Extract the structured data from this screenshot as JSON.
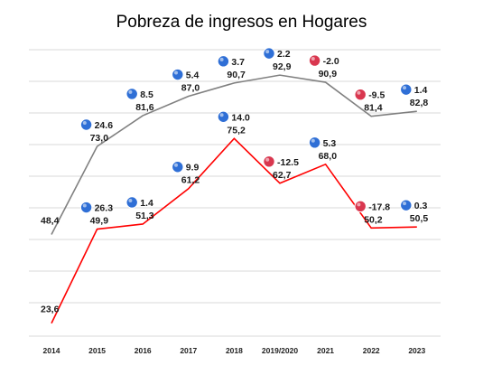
{
  "chart_data": {
    "type": "line",
    "title": "Pobreza de ingresos en Hogares",
    "categories": [
      "2014",
      "2015",
      "2016",
      "2017",
      "2018",
      "2019/2020",
      "2021",
      "2022",
      "2023"
    ],
    "series": [
      {
        "values": [
          48.4,
          73.0,
          81.6,
          87.0,
          90.7,
          92.9,
          90.9,
          81.4,
          82.8
        ],
        "labels": [
          "48,4",
          "73,0",
          "81,6",
          "87,0",
          "90,7",
          "92,9",
          "90,9",
          "81,4",
          "82,8"
        ],
        "changes": [
          null,
          "24.6",
          "8.5",
          "5.4",
          "3.7",
          "2.2",
          "-2.0",
          "-9.5",
          "1.4"
        ],
        "color": "#808080"
      },
      {
        "values": [
          23.6,
          49.9,
          51.3,
          61.2,
          75.2,
          62.7,
          68.0,
          50.2,
          50.5
        ],
        "labels": [
          "23,6",
          "49,9",
          "51,3",
          "61,2",
          "75,2",
          "62,7",
          "68,0",
          "50,2",
          "50,5"
        ],
        "changes": [
          null,
          "26.3",
          "1.4",
          "9.9",
          "14.0",
          "-12.5",
          "5.3",
          "-17.8",
          "0.3"
        ],
        "color": "#ff0000"
      }
    ],
    "ylim": [
      20,
      100
    ],
    "grid": true,
    "legend": "none",
    "colors": {
      "increase": "#2f6fd6",
      "decrease": "#d9374f",
      "gridline": "#d9d9d9"
    }
  }
}
